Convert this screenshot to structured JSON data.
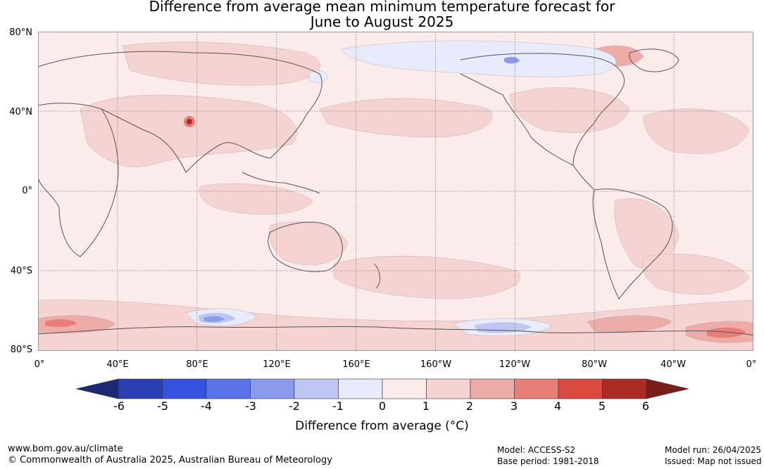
{
  "title_line1": "Difference from average mean minimum temperature forecast for",
  "title_line2": "June to August 2025",
  "lat_labels": [
    "80°N",
    "40°N",
    "0°",
    "40°S",
    "80°S"
  ],
  "lon_labels": [
    "0°",
    "40°E",
    "80°E",
    "120°E",
    "160°E",
    "160°W",
    "120°W",
    "80°W",
    "40°W",
    "0°"
  ],
  "colorbar": {
    "label": "Difference from average (°C)",
    "ticks": [
      "-6",
      "-5",
      "-4",
      "-3",
      "-2",
      "-1",
      "0",
      "1",
      "2",
      "3",
      "4",
      "5",
      "6"
    ],
    "colors": {
      "under": "#1c2a73",
      "bins": [
        "#2a3fb3",
        "#3451e0",
        "#5a74e8",
        "#8a9bec",
        "#bec6f3",
        "#e7ebfb",
        "#fbebea",
        "#f5d3d2",
        "#eeaca9",
        "#e77e78",
        "#db4a3e",
        "#ab2c25"
      ],
      "over": "#7a1e1a"
    }
  },
  "map": {
    "background": "#fbebea",
    "warm_patch": "#f5d3d2",
    "warmer_patch": "#eeaca9",
    "hot_patch": "#e77e78",
    "hotspot": "#ab2c25",
    "cool_patch": "#e7ebfb",
    "cooler_patch": "#bec6f3",
    "cold_patch": "#8a9bec",
    "coast": "#555555",
    "grid": "#777777"
  },
  "footer": {
    "url": "www.bom.gov.au/climate",
    "copyright": "© Commonwealth of Australia 2025, Australian Bureau of Meteorology",
    "model": "Model: ACCESS-S2",
    "base_period": "Base period: 1981-2018",
    "model_run": "Model run: 26/04/2025",
    "issued": "Issued: Map not issued"
  }
}
